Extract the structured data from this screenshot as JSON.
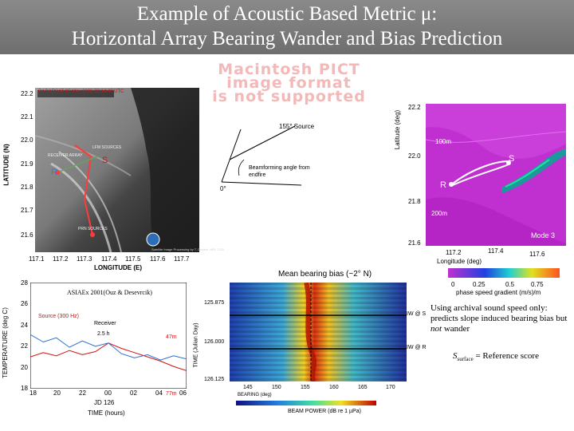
{
  "title": {
    "line1": "Example of Acoustic Based Metric μ:",
    "line2": "Horizontal Array Bearing Wander and Bias Prediction"
  },
  "pict_placeholder": {
    "line1": "Macintosh PICT",
    "line2": "image format",
    "line3": "is not supported"
  },
  "sar_panel": {
    "header": "RADARSAT 05 May 2001 22:14:40 UTC",
    "lat_ticks": [
      "22.2",
      "22.1",
      "22.0",
      "21.9",
      "21.8",
      "21.7",
      "21.6"
    ],
    "lon_ticks": [
      "117.1",
      "117.2",
      "117.3",
      "117.4",
      "117.5",
      "117.6",
      "117.7"
    ],
    "ylabel": "LATITUDE (N)",
    "xlabel": "LONGITUDE (E)",
    "labels": {
      "receiver_array": "RECEIVER ARRAY",
      "lfm_sources": "LFM SOURCES",
      "prn_sources": "PRN SOURCES",
      "s": "S",
      "r": "R"
    },
    "credit": "Satellite Image Processing by T. Donato, NRL 7210"
  },
  "bearing_diagram": {
    "source_label": "155° Source",
    "beam_text": "Beamforming angle from endfire",
    "zero_label": "0°"
  },
  "map_panel": {
    "ylabel": "Latitude (deg)",
    "lat_ticks": [
      "22.2",
      "22.0",
      "21.8",
      "21.6"
    ],
    "lon_ticks": [
      "117.2",
      "117.4",
      "117.6"
    ],
    "xlabel": "Longitude (deg)",
    "label_100m": "100m",
    "label_200m": "200m",
    "mode": "Mode 3",
    "s": "S",
    "r": "R",
    "colorbar_ticks": [
      "0",
      "0.25",
      "0.5",
      "0.75"
    ],
    "colorbar_label": "phase speed gradient (m/s)/m"
  },
  "bias_label": "Mean bearing bias (~2° N)",
  "temp_panel": {
    "ylabel": "TEMPERATURE (deg C)",
    "yticks": [
      "28",
      "26",
      "24",
      "22",
      "20",
      "18"
    ],
    "xticks": [
      "18",
      "20",
      "22",
      "00",
      "02",
      "04",
      "06"
    ],
    "xsub": "JD 126",
    "xlabel": "TIME (hours)",
    "legend": "ASIAEx 2001(Ouz & Desevrcik)",
    "source_label": "Source (300 Hz)",
    "receiver_label": "Receiver",
    "span_label": "2.5 h",
    "depth1": "47m",
    "depth2": "77m"
  },
  "beam_panel": {
    "ylabel": "TIME (Julian Day)",
    "yticks": [
      "125.875",
      "126.000",
      "126.125"
    ],
    "xticks": [
      "145",
      "150",
      "155",
      "160",
      "165",
      "170"
    ],
    "xlabel": "BEARING (deg)",
    "cbar_label": "BEAM POWER (dB re 1 µPa)",
    "annot_top": "IW @ S",
    "annot_bottom": "IW @ R"
  },
  "notes": {
    "text": "Using archival sound speed only: predicts slope induced bearing bias but not wander",
    "text_a": "Using archival sound speed only: predicts slope induced bearing bias but ",
    "text_em": "not",
    "text_b": " wander",
    "score_symbol": "S",
    "score_sub": "surface",
    "score_text": " = Reference score"
  },
  "colors": {
    "title_bg": "#7a7a7a",
    "red": "#d01010",
    "blue": "#2a6fd0",
    "magenta": "#c030d0"
  },
  "chart_data": [
    {
      "type": "line",
      "title": "",
      "xlabel": "TIME (hours)",
      "ylabel": "TEMPERATURE (deg C)",
      "x_hours": [
        18,
        19,
        20,
        21,
        22,
        23,
        24,
        25,
        26,
        27,
        28,
        29,
        30
      ],
      "ylim": [
        18,
        28
      ],
      "series": [
        {
          "name": "Source (300 Hz)",
          "values": [
            21.0,
            21.4,
            21.1,
            21.6,
            21.2,
            21.5,
            22.3,
            21.8,
            21.4,
            21.0,
            20.6,
            20.1,
            19.7
          ]
        },
        {
          "name": "Receiver",
          "values": [
            23.1,
            22.4,
            22.8,
            21.9,
            22.5,
            22.0,
            22.3,
            21.3,
            20.9,
            21.2,
            20.7,
            21.1,
            20.8
          ]
        }
      ]
    }
  ]
}
